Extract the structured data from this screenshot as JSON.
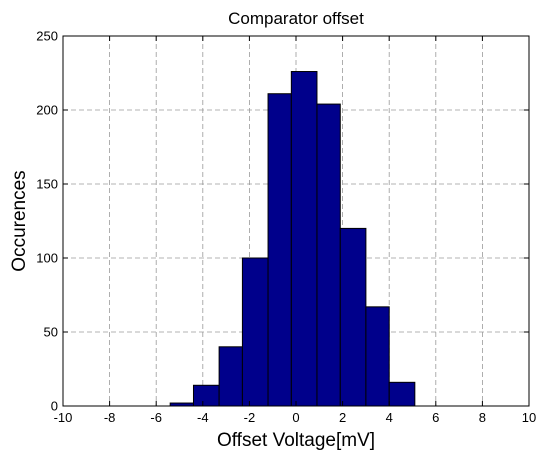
{
  "chart_data": {
    "type": "bar",
    "title": "Comparator offset",
    "xlabel": "Offset Voltage[mV]",
    "ylabel": "Occurences",
    "xlim": [
      -10,
      10
    ],
    "ylim": [
      0,
      250
    ],
    "xticks": [
      -10,
      -8,
      -6,
      -4,
      -2,
      0,
      2,
      4,
      6,
      8,
      10
    ],
    "yticks": [
      0,
      50,
      100,
      150,
      200,
      250
    ],
    "grid": true,
    "bar_color": "#00008b",
    "bins": [
      {
        "x0": -5.4,
        "x1": -4.4,
        "value": 2
      },
      {
        "x0": -4.4,
        "x1": -3.3,
        "value": 14
      },
      {
        "x0": -3.3,
        "x1": -2.3,
        "value": 40
      },
      {
        "x0": -2.3,
        "x1": -1.2,
        "value": 100
      },
      {
        "x0": -1.2,
        "x1": -0.2,
        "value": 211
      },
      {
        "x0": -0.2,
        "x1": 0.9,
        "value": 226
      },
      {
        "x0": 0.9,
        "x1": 1.9,
        "value": 204
      },
      {
        "x0": 1.9,
        "x1": 3.0,
        "value": 120
      },
      {
        "x0": 3.0,
        "x1": 4.0,
        "value": 67
      },
      {
        "x0": 4.0,
        "x1": 5.1,
        "value": 16
      }
    ]
  }
}
